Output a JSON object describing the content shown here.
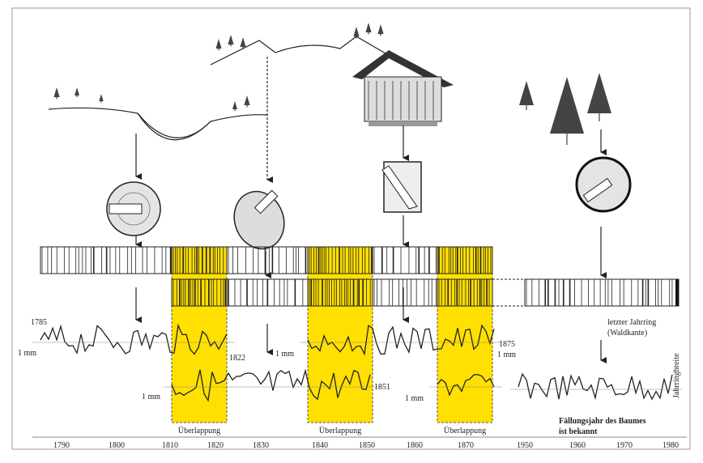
{
  "curve_labels": {
    "start_year": "1785",
    "end_years": [
      "1822",
      "1851",
      "1875"
    ],
    "scale": [
      "1 mm",
      "1 mm",
      "1 mm",
      "1 mm",
      "1 mm"
    ]
  },
  "overlap_labels": [
    "Überlappung",
    "Überlappung",
    "Überlappung"
  ],
  "last_ring": [
    "letzter Jahrring",
    "(Waldkante)"
  ],
  "ring_width_label": "Jahrringbreite",
  "felling_note": [
    "Fällungsjahr des Baumes",
    "ist bekannt"
  ],
  "axis_years": [
    "1790",
    "1800",
    "1810",
    "1820",
    "1830",
    "1840",
    "1850",
    "1860",
    "1870",
    "1950",
    "1960",
    "1970",
    "1980"
  ]
}
